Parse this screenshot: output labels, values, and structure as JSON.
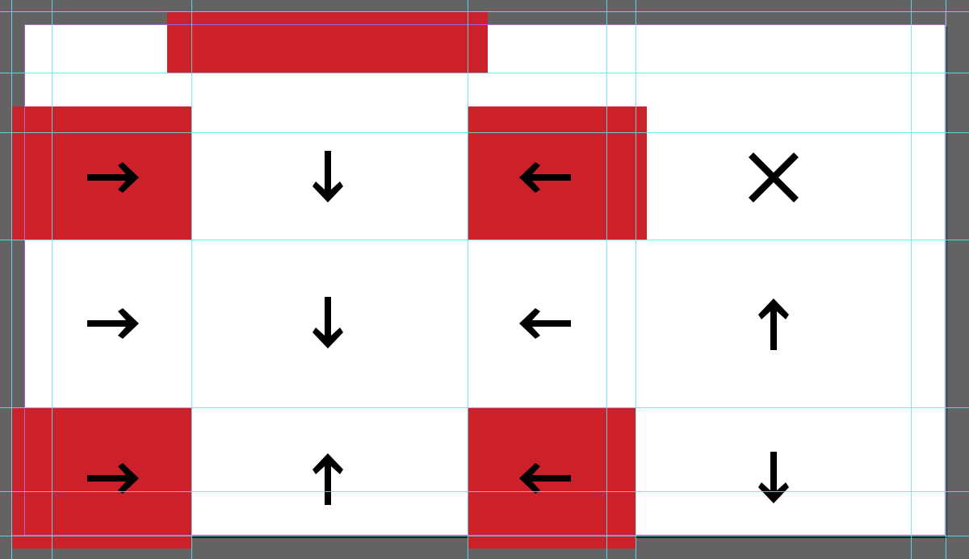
{
  "colors": {
    "pasteboard": "#636363",
    "artboard": "#ffffff",
    "accent_red": "#cc202b",
    "arrow": "#000000",
    "guide": "#5fe6ec"
  },
  "grid": {
    "rows": [
      [
        "arrow-right-icon",
        "arrow-down-icon",
        "arrow-left-icon",
        "close-icon"
      ],
      [
        "arrow-right-icon",
        "arrow-down-icon",
        "arrow-left-icon",
        "arrow-up-icon"
      ],
      [
        "arrow-right-icon",
        "arrow-up-icon",
        "arrow-left-icon",
        "arrow-down-icon"
      ]
    ]
  }
}
